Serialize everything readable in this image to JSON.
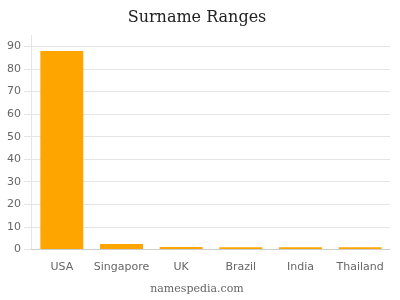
{
  "chart_data": {
    "type": "bar",
    "title": "Surname Ranges",
    "categories": [
      "USA",
      "Singapore",
      "UK",
      "Brazil",
      "India",
      "Thailand"
    ],
    "values": [
      88,
      2.5,
      1.2,
      1.0,
      1.0,
      1.0
    ],
    "color": "#FFA500",
    "ylim": [
      0,
      95
    ],
    "yticks": [
      0,
      10,
      20,
      30,
      40,
      50,
      60,
      70,
      80,
      90
    ],
    "grid": true,
    "annotations": [
      "namespedia.com"
    ]
  }
}
